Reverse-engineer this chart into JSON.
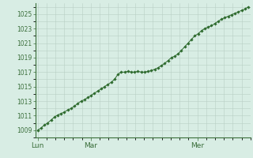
{
  "background_color": "#d8ede4",
  "plot_bg_color": "#d8ede4",
  "line_color": "#2d6a2d",
  "marker_color": "#2d6a2d",
  "grid_color": "#b8cfc4",
  "tick_color": "#3a6e3a",
  "axis_color": "#3a6e3a",
  "y_ticks": [
    1009,
    1011,
    1013,
    1015,
    1017,
    1019,
    1021,
    1023,
    1025
  ],
  "ylim": [
    1008.0,
    1026.5
  ],
  "x_tick_labels": [
    "Lun",
    "Mar",
    "Mer"
  ],
  "x_tick_positions": [
    0,
    24,
    72
  ],
  "xlim": [
    -1,
    96
  ],
  "values": [
    1009.0,
    1009.3,
    1009.7,
    1010.0,
    1010.4,
    1010.8,
    1011.1,
    1011.3,
    1011.5,
    1011.8,
    1012.0,
    1012.3,
    1012.7,
    1013.0,
    1013.2,
    1013.5,
    1013.8,
    1014.1,
    1014.4,
    1014.7,
    1015.0,
    1015.3,
    1015.6,
    1016.0,
    1016.7,
    1017.0,
    1017.0,
    1017.1,
    1017.0,
    1017.0,
    1017.1,
    1017.0,
    1017.0,
    1017.1,
    1017.2,
    1017.4,
    1017.6,
    1017.9,
    1018.2,
    1018.6,
    1019.0,
    1019.2,
    1019.5,
    1020.0,
    1020.5,
    1021.0,
    1021.5,
    1022.0,
    1022.3,
    1022.7,
    1023.0,
    1023.2,
    1023.4,
    1023.7,
    1024.0,
    1024.3,
    1024.5,
    1024.7,
    1024.9,
    1025.1,
    1025.3,
    1025.5,
    1025.7,
    1026.0
  ],
  "figsize": [
    3.2,
    2.0
  ],
  "dpi": 100
}
